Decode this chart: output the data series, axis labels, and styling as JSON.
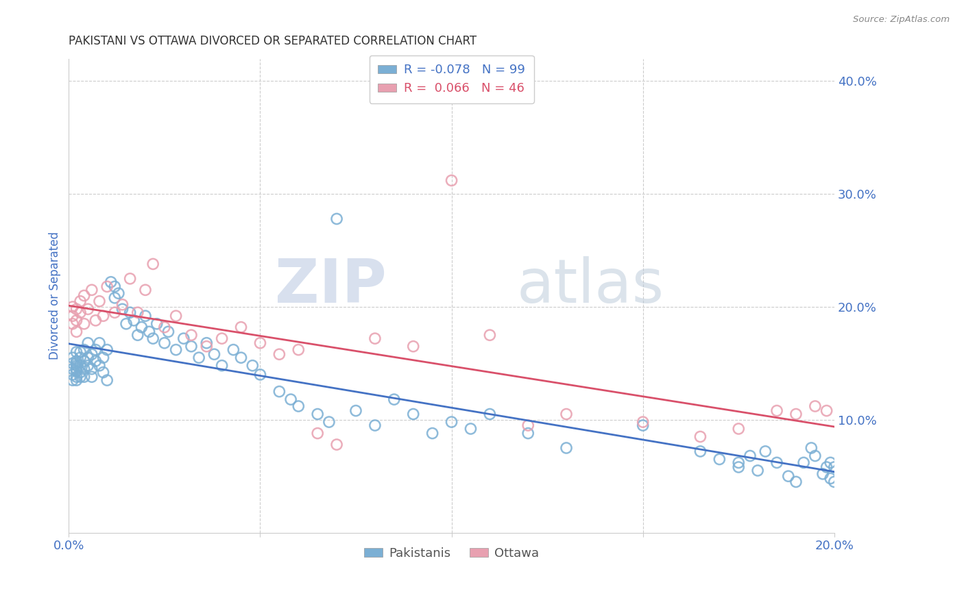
{
  "title": "PAKISTANI VS OTTAWA DIVORCED OR SEPARATED CORRELATION CHART",
  "source": "Source: ZipAtlas.com",
  "ylabel": "Divorced or Separated",
  "xlim": [
    0.0,
    0.2
  ],
  "ylim": [
    0.0,
    0.42
  ],
  "blue_color": "#7bafd4",
  "pink_color": "#e8a0b0",
  "blue_line_color": "#4472c4",
  "pink_line_color": "#d9506a",
  "legend_R_blue": "-0.078",
  "legend_N_blue": "99",
  "legend_R_pink": "0.066",
  "legend_N_pink": "46",
  "watermark_zip": "ZIP",
  "watermark_atlas": "atlas",
  "axis_label_color": "#4472c4",
  "tick_label_color": "#4472c4",
  "grid_color": "#cccccc",
  "title_fontsize": 12,
  "blue_scatter_x": [
    0.001,
    0.001,
    0.001,
    0.001,
    0.001,
    0.002,
    0.002,
    0.002,
    0.002,
    0.002,
    0.002,
    0.002,
    0.002,
    0.003,
    0.003,
    0.003,
    0.003,
    0.003,
    0.004,
    0.004,
    0.004,
    0.004,
    0.005,
    0.005,
    0.005,
    0.006,
    0.006,
    0.006,
    0.007,
    0.007,
    0.008,
    0.008,
    0.009,
    0.009,
    0.01,
    0.01,
    0.011,
    0.012,
    0.012,
    0.013,
    0.014,
    0.015,
    0.016,
    0.017,
    0.018,
    0.019,
    0.02,
    0.021,
    0.022,
    0.023,
    0.025,
    0.026,
    0.028,
    0.03,
    0.032,
    0.034,
    0.036,
    0.038,
    0.04,
    0.043,
    0.045,
    0.048,
    0.05,
    0.055,
    0.058,
    0.06,
    0.065,
    0.068,
    0.07,
    0.075,
    0.08,
    0.085,
    0.09,
    0.095,
    0.1,
    0.105,
    0.11,
    0.12,
    0.13,
    0.15,
    0.165,
    0.17,
    0.175,
    0.175,
    0.178,
    0.18,
    0.182,
    0.185,
    0.188,
    0.19,
    0.192,
    0.194,
    0.195,
    0.197,
    0.198,
    0.199,
    0.199,
    0.2,
    0.2
  ],
  "blue_scatter_y": [
    0.145,
    0.15,
    0.14,
    0.155,
    0.135,
    0.15,
    0.145,
    0.138,
    0.152,
    0.148,
    0.143,
    0.16,
    0.135,
    0.148,
    0.155,
    0.142,
    0.16,
    0.138,
    0.152,
    0.145,
    0.162,
    0.138,
    0.155,
    0.148,
    0.168,
    0.145,
    0.158,
    0.138,
    0.152,
    0.162,
    0.148,
    0.168,
    0.155,
    0.142,
    0.162,
    0.135,
    0.222,
    0.208,
    0.218,
    0.212,
    0.198,
    0.185,
    0.195,
    0.188,
    0.175,
    0.182,
    0.192,
    0.178,
    0.172,
    0.185,
    0.168,
    0.178,
    0.162,
    0.172,
    0.165,
    0.155,
    0.168,
    0.158,
    0.148,
    0.162,
    0.155,
    0.148,
    0.14,
    0.125,
    0.118,
    0.112,
    0.105,
    0.098,
    0.278,
    0.108,
    0.095,
    0.118,
    0.105,
    0.088,
    0.098,
    0.092,
    0.105,
    0.088,
    0.075,
    0.095,
    0.072,
    0.065,
    0.062,
    0.058,
    0.068,
    0.055,
    0.072,
    0.062,
    0.05,
    0.045,
    0.062,
    0.075,
    0.068,
    0.052,
    0.058,
    0.048,
    0.062,
    0.058,
    0.045
  ],
  "pink_scatter_x": [
    0.001,
    0.001,
    0.001,
    0.002,
    0.002,
    0.002,
    0.003,
    0.003,
    0.004,
    0.004,
    0.005,
    0.006,
    0.007,
    0.008,
    0.009,
    0.01,
    0.012,
    0.014,
    0.016,
    0.018,
    0.02,
    0.022,
    0.025,
    0.028,
    0.032,
    0.036,
    0.04,
    0.045,
    0.05,
    0.055,
    0.06,
    0.065,
    0.07,
    0.08,
    0.09,
    0.1,
    0.11,
    0.12,
    0.13,
    0.15,
    0.165,
    0.175,
    0.185,
    0.19,
    0.195,
    0.198
  ],
  "pink_scatter_y": [
    0.2,
    0.192,
    0.185,
    0.198,
    0.188,
    0.178,
    0.205,
    0.195,
    0.21,
    0.185,
    0.198,
    0.215,
    0.188,
    0.205,
    0.192,
    0.218,
    0.195,
    0.202,
    0.225,
    0.195,
    0.215,
    0.238,
    0.182,
    0.192,
    0.175,
    0.165,
    0.172,
    0.182,
    0.168,
    0.158,
    0.162,
    0.088,
    0.078,
    0.172,
    0.165,
    0.312,
    0.175,
    0.095,
    0.105,
    0.098,
    0.085,
    0.092,
    0.108,
    0.105,
    0.112,
    0.108
  ]
}
